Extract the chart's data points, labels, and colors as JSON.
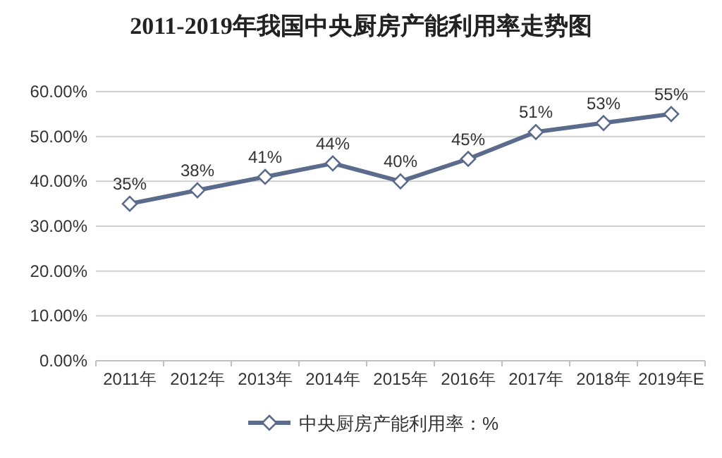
{
  "chart_data": {
    "type": "line",
    "title": "2011-2019年我国中央厨房产能利用率走势图",
    "categories": [
      "2011年",
      "2012年",
      "2013年",
      "2014年",
      "2015年",
      "2016年",
      "2017年",
      "2018年",
      "2019年E"
    ],
    "series": [
      {
        "name": "中央厨房产能利用率：%",
        "color": "#5b6b8c",
        "values": [
          35,
          38,
          41,
          44,
          40,
          45,
          51,
          53,
          55
        ],
        "value_labels": [
          "35%",
          "38%",
          "41%",
          "44%",
          "40%",
          "45%",
          "51%",
          "53%",
          "55%"
        ]
      }
    ],
    "ylim": [
      0,
      60
    ],
    "yticks": [
      {
        "value": 0,
        "label": "0.00%"
      },
      {
        "value": 10,
        "label": "10.00%"
      },
      {
        "value": 20,
        "label": "20.00%"
      },
      {
        "value": 30,
        "label": "30.00%"
      },
      {
        "value": 40,
        "label": "40.00%"
      },
      {
        "value": 50,
        "label": "50.00%"
      },
      {
        "value": 60,
        "label": "60.00%"
      }
    ],
    "grid": "y",
    "legend": "bottom",
    "marker": "diamond",
    "line_style": "solid"
  }
}
